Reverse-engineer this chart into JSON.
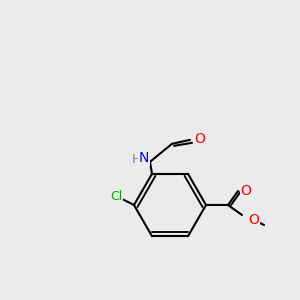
{
  "bg_color": "#ebebeb",
  "bond_color": "#000000",
  "bond_width": 1.5,
  "atom_colors": {
    "N": "#0000ff",
    "O": "#ff0000",
    "Cl": "#00aa00",
    "H": "#808080",
    "C": "#000000"
  }
}
